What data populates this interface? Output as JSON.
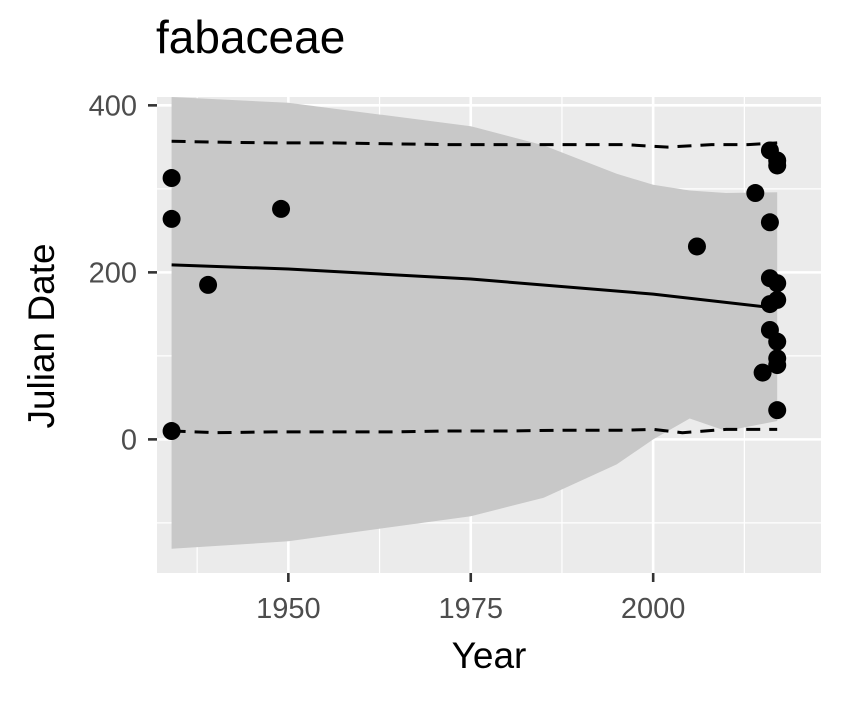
{
  "chart_data": {
    "type": "scatter",
    "title": "fabaceae",
    "xlabel": "Year",
    "ylabel": "Julian Date",
    "xlim": [
      1932,
      2023
    ],
    "ylim": [
      -160,
      410
    ],
    "x_ticks": [
      1950,
      1975,
      2000
    ],
    "y_ticks": [
      0,
      200,
      400
    ],
    "grid": true,
    "colors": {
      "panel_background": "#ebebeb",
      "grid": "#ffffff",
      "ribbon": "#c8c8c8",
      "points": "#000000",
      "lines": "#000000"
    },
    "points": [
      {
        "x": 1934,
        "y": 313
      },
      {
        "x": 1934,
        "y": 264
      },
      {
        "x": 1934,
        "y": 10
      },
      {
        "x": 1939,
        "y": 185
      },
      {
        "x": 1949,
        "y": 276
      },
      {
        "x": 2006,
        "y": 231
      },
      {
        "x": 2014,
        "y": 295
      },
      {
        "x": 2015,
        "y": 80
      },
      {
        "x": 2016,
        "y": 346
      },
      {
        "x": 2016,
        "y": 260
      },
      {
        "x": 2016,
        "y": 193
      },
      {
        "x": 2016,
        "y": 162
      },
      {
        "x": 2016,
        "y": 131
      },
      {
        "x": 2017,
        "y": 334
      },
      {
        "x": 2017,
        "y": 328
      },
      {
        "x": 2017,
        "y": 187
      },
      {
        "x": 2017,
        "y": 167
      },
      {
        "x": 2017,
        "y": 117
      },
      {
        "x": 2017,
        "y": 97
      },
      {
        "x": 2017,
        "y": 89
      },
      {
        "x": 2017,
        "y": 35
      }
    ],
    "fit_line": {
      "x": [
        1934,
        1950,
        1975,
        2000,
        2017
      ],
      "y": [
        209,
        204,
        192,
        174,
        157
      ]
    },
    "confidence_band": {
      "x": [
        1934,
        1950,
        1975,
        1985,
        1995,
        2000,
        2005,
        2010,
        2017
      ],
      "upper": [
        410,
        403,
        375,
        352,
        318,
        305,
        298,
        295,
        296
      ],
      "lower": [
        -131,
        -122,
        -92,
        -70,
        -30,
        0,
        25,
        10,
        22
      ]
    },
    "upper_quantile": {
      "x": [
        1934,
        1940,
        1948,
        1956,
        1964,
        1972,
        1980,
        1988,
        1996,
        2002,
        2008,
        2013,
        2017
      ],
      "y": [
        357,
        356,
        355,
        355,
        354,
        353,
        353,
        353,
        353,
        350,
        353,
        353,
        355
      ]
    },
    "lower_quantile": {
      "x": [
        1934,
        1940,
        1948,
        1956,
        1964,
        1972,
        1980,
        1988,
        1996,
        2000,
        2004,
        2010,
        2017
      ],
      "y": [
        10,
        8,
        9,
        9,
        9,
        10,
        10,
        11,
        11,
        12,
        8,
        12,
        12
      ]
    }
  }
}
